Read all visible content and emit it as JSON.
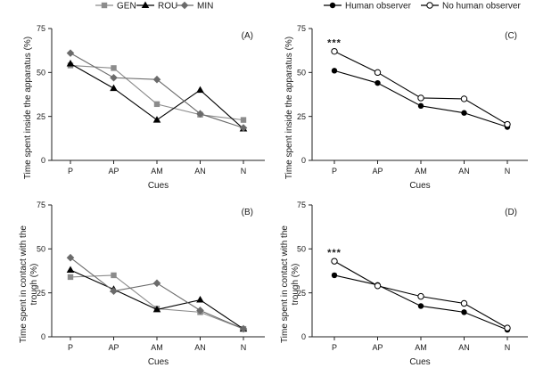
{
  "figure": {
    "legend_left": [
      "GEN",
      "ROU",
      "MIN"
    ],
    "legend_right": [
      "Human observer",
      "No human observer"
    ]
  },
  "chart_data": [
    {
      "type": "line",
      "panel": "(A)",
      "categories": [
        "P",
        "AP",
        "AM",
        "AN",
        "N"
      ],
      "xlabel": "Cues",
      "ylabel": "Time spent inside the apparatus (%)",
      "ylim": [
        0,
        75
      ],
      "yticks": [
        0,
        25,
        50,
        75
      ],
      "series": [
        {
          "name": "GEN",
          "marker": "square",
          "color": "#8c8c8c",
          "values": [
            54,
            52.5,
            32,
            26,
            23
          ]
        },
        {
          "name": "ROU",
          "marker": "triangle",
          "color": "#000000",
          "values": [
            55,
            41,
            23,
            40,
            18
          ]
        },
        {
          "name": "MIN",
          "marker": "diamond",
          "color": "#6b6b6b",
          "values": [
            61,
            47,
            46,
            26.5,
            18.5
          ]
        }
      ]
    },
    {
      "type": "line",
      "panel": "(C)",
      "categories": [
        "P",
        "AP",
        "AM",
        "AN",
        "N"
      ],
      "xlabel": "Cues",
      "ylabel": "Time spent inside the apparatus (%)",
      "ylim": [
        0,
        75
      ],
      "yticks": [
        0,
        25,
        50,
        75
      ],
      "annotation": {
        "text": "***",
        "category": "P",
        "value": 62
      },
      "series": [
        {
          "name": "Human observer",
          "marker": "filled-circle",
          "color": "#000000",
          "values": [
            51,
            44,
            31,
            27,
            19
          ]
        },
        {
          "name": "No human observer",
          "marker": "open-circle",
          "color": "#000000",
          "values": [
            62,
            50,
            35.5,
            35,
            20.5
          ]
        }
      ]
    },
    {
      "type": "line",
      "panel": "(B)",
      "categories": [
        "P",
        "AP",
        "AM",
        "AN",
        "N"
      ],
      "xlabel": "Cues",
      "ylabel": "Time spent in contact with the trough (%)",
      "ylim": [
        0,
        75
      ],
      "yticks": [
        0,
        25,
        50,
        75
      ],
      "series": [
        {
          "name": "GEN",
          "marker": "square",
          "color": "#8c8c8c",
          "values": [
            34,
            35,
            16,
            14,
            4.5
          ]
        },
        {
          "name": "ROU",
          "marker": "triangle",
          "color": "#000000",
          "values": [
            38,
            27,
            15.5,
            21,
            4.5
          ]
        },
        {
          "name": "MIN",
          "marker": "diamond",
          "color": "#6b6b6b",
          "values": [
            45,
            26,
            30.5,
            15,
            4.5
          ]
        }
      ]
    },
    {
      "type": "line",
      "panel": "(D)",
      "categories": [
        "P",
        "AP",
        "AM",
        "AN",
        "N"
      ],
      "xlabel": "Cues",
      "ylabel": "Time spent in contact with the trough (%)",
      "ylim": [
        0,
        75
      ],
      "yticks": [
        0,
        25,
        50,
        75
      ],
      "annotation": {
        "text": "***",
        "category": "P",
        "value": 43
      },
      "series": [
        {
          "name": "Human observer",
          "marker": "filled-circle",
          "color": "#000000",
          "values": [
            35,
            29.5,
            17.5,
            14,
            4
          ]
        },
        {
          "name": "No human observer",
          "marker": "open-circle",
          "color": "#000000",
          "values": [
            43,
            29,
            23,
            19,
            5
          ]
        }
      ]
    }
  ]
}
